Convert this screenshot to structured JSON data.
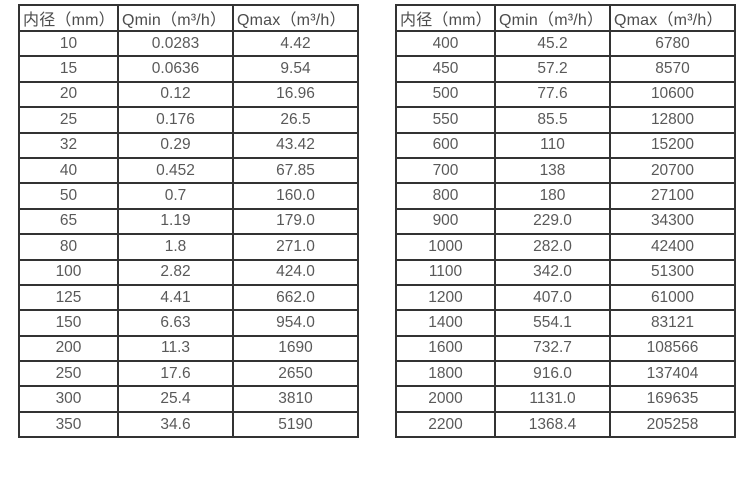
{
  "colors": {
    "background": "#ffffff",
    "border": "#333333",
    "header_text": "#4d4d4d",
    "cell_text": "#595959"
  },
  "tables": [
    {
      "name": "flow-rate-table-left",
      "headers": [
        "内径（mm）",
        "Qmin（m³/h）",
        "Qmax（m³/h）"
      ],
      "rows": [
        [
          "10",
          "0.0283",
          "4.42"
        ],
        [
          "15",
          "0.0636",
          "9.54"
        ],
        [
          "20",
          "0.12",
          "16.96"
        ],
        [
          "25",
          "0.176",
          "26.5"
        ],
        [
          "32",
          "0.29",
          "43.42"
        ],
        [
          "40",
          "0.452",
          "67.85"
        ],
        [
          "50",
          "0.7",
          "160.0"
        ],
        [
          "65",
          "1.19",
          "179.0"
        ],
        [
          "80",
          "1.8",
          "271.0"
        ],
        [
          "100",
          "2.82",
          "424.0"
        ],
        [
          "125",
          "4.41",
          "662.0"
        ],
        [
          "150",
          "6.63",
          "954.0"
        ],
        [
          "200",
          "11.3",
          "1690"
        ],
        [
          "250",
          "17.6",
          "2650"
        ],
        [
          "300",
          "25.4",
          "3810"
        ],
        [
          "350",
          "34.6",
          "5190"
        ]
      ]
    },
    {
      "name": "flow-rate-table-right",
      "headers": [
        "内径（mm）",
        "Qmin（m³/h）",
        "Qmax（m³/h）"
      ],
      "rows": [
        [
          "400",
          "45.2",
          "6780"
        ],
        [
          "450",
          "57.2",
          "8570"
        ],
        [
          "500",
          "77.6",
          "10600"
        ],
        [
          "550",
          "85.5",
          "12800"
        ],
        [
          "600",
          "110",
          "15200"
        ],
        [
          "700",
          "138",
          "20700"
        ],
        [
          "800",
          "180",
          "27100"
        ],
        [
          "900",
          "229.0",
          "34300"
        ],
        [
          "1000",
          "282.0",
          "42400"
        ],
        [
          "1100",
          "342.0",
          "51300"
        ],
        [
          "1200",
          "407.0",
          "61000"
        ],
        [
          "1400",
          "554.1",
          "83121"
        ],
        [
          "1600",
          "732.7",
          "108566"
        ],
        [
          "1800",
          "916.0",
          "137404"
        ],
        [
          "2000",
          "1131.0",
          "169635"
        ],
        [
          "2200",
          "1368.4",
          "205258"
        ]
      ]
    }
  ],
  "chart_data": {
    "type": "table",
    "title": "",
    "tables": [
      {
        "columns": [
          "内径（mm）",
          "Qmin（m³/h）",
          "Qmax（m³/h）"
        ],
        "rows": [
          [
            10,
            0.0283,
            4.42
          ],
          [
            15,
            0.0636,
            9.54
          ],
          [
            20,
            0.12,
            16.96
          ],
          [
            25,
            0.176,
            26.5
          ],
          [
            32,
            0.29,
            43.42
          ],
          [
            40,
            0.452,
            67.85
          ],
          [
            50,
            0.7,
            160.0
          ],
          [
            65,
            1.19,
            179.0
          ],
          [
            80,
            1.8,
            271.0
          ],
          [
            100,
            2.82,
            424.0
          ],
          [
            125,
            4.41,
            662.0
          ],
          [
            150,
            6.63,
            954.0
          ],
          [
            200,
            11.3,
            1690
          ],
          [
            250,
            17.6,
            2650
          ],
          [
            300,
            25.4,
            3810
          ],
          [
            350,
            34.6,
            5190
          ]
        ]
      },
      {
        "columns": [
          "内径（mm）",
          "Qmin（m³/h）",
          "Qmax（m³/h）"
        ],
        "rows": [
          [
            400,
            45.2,
            6780
          ],
          [
            450,
            57.2,
            8570
          ],
          [
            500,
            77.6,
            10600
          ],
          [
            550,
            85.5,
            12800
          ],
          [
            600,
            110,
            15200
          ],
          [
            700,
            138,
            20700
          ],
          [
            800,
            180,
            27100
          ],
          [
            900,
            229.0,
            34300
          ],
          [
            1000,
            282.0,
            42400
          ],
          [
            1100,
            342.0,
            51300
          ],
          [
            1200,
            407.0,
            61000
          ],
          [
            1400,
            554.1,
            83121
          ],
          [
            1600,
            732.7,
            108566
          ],
          [
            1800,
            916.0,
            137404
          ],
          [
            2000,
            1131.0,
            169635
          ],
          [
            2200,
            1368.4,
            205258
          ]
        ]
      }
    ]
  }
}
